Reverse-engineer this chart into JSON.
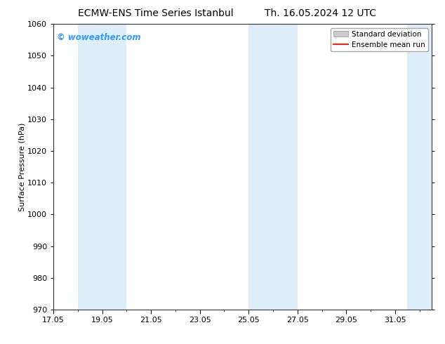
{
  "title_left": "ECMW-ENS Time Series Istanbul",
  "title_right": "Th. 16.05.2024 12 UTC",
  "ylabel": "Surface Pressure (hPa)",
  "ylim": [
    970,
    1060
  ],
  "yticks": [
    970,
    980,
    990,
    1000,
    1010,
    1020,
    1030,
    1040,
    1050,
    1060
  ],
  "x_min": 17.0,
  "x_max": 32.5,
  "xtick_labels": [
    "17.05",
    "19.05",
    "21.05",
    "23.05",
    "25.05",
    "27.05",
    "29.05",
    "31.05"
  ],
  "xtick_positions_days": [
    17,
    19,
    21,
    23,
    25,
    27,
    29,
    31
  ],
  "shaded_bands": [
    {
      "x_start_day": 18.0,
      "x_end_day": 20.0,
      "color": "#ddeef8"
    },
    {
      "x_start_day": 25.0,
      "x_end_day": 27.0,
      "color": "#ddeef8"
    },
    {
      "x_start_day": 31.5,
      "x_end_day": 32.5,
      "color": "#ddeef8"
    }
  ],
  "watermark": "© woweather.com",
  "watermark_color": "#3399ff",
  "legend_std_dev_color": "#cccccc",
  "legend_std_dev_edge": "#aaaaaa",
  "legend_mean_run_color": "#ff2200",
  "bg_color": "#ffffff",
  "plot_bg_color": "#ffffff",
  "title_fontsize": 10,
  "label_fontsize": 8,
  "tick_fontsize": 8,
  "watermark_fontsize": 8.5,
  "legend_fontsize": 7.5
}
